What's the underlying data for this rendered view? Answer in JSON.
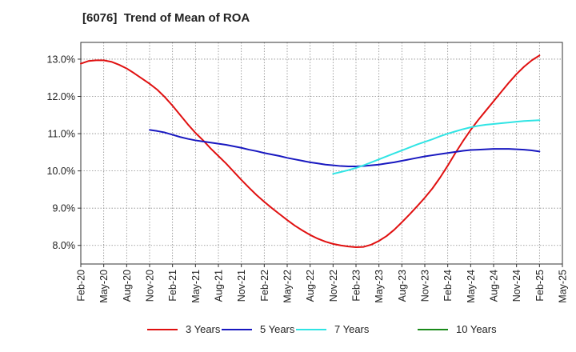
{
  "chart_data": {
    "type": "line",
    "title": "[6076]  Trend of Mean of ROA",
    "xlabel": "",
    "ylabel": "",
    "x_ticks": [
      "Feb-20",
      "May-20",
      "Aug-20",
      "Nov-20",
      "Feb-21",
      "May-21",
      "Aug-21",
      "Nov-21",
      "Feb-22",
      "May-22",
      "Aug-22",
      "Nov-22",
      "Feb-23",
      "May-23",
      "Aug-23",
      "Nov-23",
      "Feb-24",
      "May-24",
      "Aug-24",
      "Nov-24",
      "Feb-25",
      "May-25"
    ],
    "y_ticks": [
      "8.0%",
      "9.0%",
      "10.0%",
      "11.0%",
      "12.0%",
      "13.0%"
    ],
    "y_tick_values": [
      8,
      9,
      10,
      11,
      12,
      13
    ],
    "ylim": [
      7.5,
      13.45
    ],
    "grid": true,
    "legend_position": "bottom",
    "series": [
      {
        "name": "3 Years",
        "color": "#e01010",
        "x": [
          "Feb-20",
          "Mar-20",
          "Apr-20",
          "May-20",
          "Jun-20",
          "Jul-20",
          "Aug-20",
          "Sep-20",
          "Oct-20",
          "Nov-20",
          "Dec-20",
          "Jan-21",
          "Feb-21",
          "Mar-21",
          "Apr-21",
          "May-21",
          "Jun-21",
          "Jul-21",
          "Aug-21",
          "Sep-21",
          "Oct-21",
          "Nov-21",
          "Dec-21",
          "Jan-22",
          "Feb-22",
          "Mar-22",
          "Apr-22",
          "May-22",
          "Jun-22",
          "Jul-22",
          "Aug-22",
          "Sep-22",
          "Oct-22",
          "Nov-22",
          "Dec-22",
          "Jan-23",
          "Feb-23",
          "Mar-23",
          "Apr-23",
          "May-23",
          "Jun-23",
          "Jul-23",
          "Aug-23",
          "Sep-23",
          "Oct-23",
          "Nov-23",
          "Dec-23",
          "Jan-24",
          "Feb-24",
          "Mar-24",
          "Apr-24",
          "May-24",
          "Jun-24",
          "Jul-24",
          "Aug-24",
          "Sep-24",
          "Oct-24",
          "Nov-24",
          "Dec-24",
          "Jan-25",
          "Feb-25"
        ],
        "values": [
          12.88,
          12.95,
          12.97,
          12.97,
          12.93,
          12.85,
          12.75,
          12.62,
          12.48,
          12.34,
          12.18,
          11.98,
          11.75,
          11.5,
          11.25,
          11.02,
          10.82,
          10.6,
          10.4,
          10.2,
          9.98,
          9.76,
          9.55,
          9.35,
          9.17,
          9.0,
          8.84,
          8.68,
          8.53,
          8.4,
          8.28,
          8.18,
          8.1,
          8.04,
          8.0,
          7.97,
          7.95,
          7.96,
          8.02,
          8.12,
          8.25,
          8.42,
          8.62,
          8.83,
          9.05,
          9.28,
          9.53,
          9.82,
          10.14,
          10.48,
          10.8,
          11.1,
          11.37,
          11.62,
          11.87,
          12.12,
          12.37,
          12.6,
          12.8,
          12.97,
          13.1
        ]
      },
      {
        "name": "5 Years",
        "color": "#1818c0",
        "x": [
          "Nov-20",
          "Dec-20",
          "Jan-21",
          "Feb-21",
          "Mar-21",
          "Apr-21",
          "May-21",
          "Jun-21",
          "Jul-21",
          "Aug-21",
          "Sep-21",
          "Oct-21",
          "Nov-21",
          "Dec-21",
          "Jan-22",
          "Feb-22",
          "Mar-22",
          "Apr-22",
          "May-22",
          "Jun-22",
          "Jul-22",
          "Aug-22",
          "Sep-22",
          "Oct-22",
          "Nov-22",
          "Dec-22",
          "Jan-23",
          "Feb-23",
          "Mar-23",
          "Apr-23",
          "May-23",
          "Jun-23",
          "Jul-23",
          "Aug-23",
          "Sep-23",
          "Oct-23",
          "Nov-23",
          "Dec-23",
          "Jan-24",
          "Feb-24",
          "Mar-24",
          "Apr-24",
          "May-24",
          "Jun-24",
          "Jul-24",
          "Aug-24",
          "Sep-24",
          "Oct-24",
          "Nov-24",
          "Dec-24",
          "Jan-25",
          "Feb-25"
        ],
        "values": [
          11.1,
          11.07,
          11.03,
          10.97,
          10.91,
          10.86,
          10.82,
          10.79,
          10.76,
          10.73,
          10.7,
          10.66,
          10.62,
          10.57,
          10.53,
          10.48,
          10.44,
          10.4,
          10.35,
          10.31,
          10.27,
          10.23,
          10.2,
          10.17,
          10.15,
          10.13,
          10.12,
          10.12,
          10.13,
          10.15,
          10.17,
          10.2,
          10.23,
          10.27,
          10.31,
          10.35,
          10.39,
          10.42,
          10.45,
          10.48,
          10.51,
          10.54,
          10.56,
          10.57,
          10.58,
          10.59,
          10.59,
          10.59,
          10.58,
          10.57,
          10.55,
          10.52
        ]
      },
      {
        "name": "7 Years",
        "color": "#30e4e4",
        "x": [
          "Nov-22",
          "Dec-22",
          "Jan-23",
          "Feb-23",
          "Mar-23",
          "Apr-23",
          "May-23",
          "Jun-23",
          "Jul-23",
          "Aug-23",
          "Sep-23",
          "Oct-23",
          "Nov-23",
          "Dec-23",
          "Jan-24",
          "Feb-24",
          "Mar-24",
          "Apr-24",
          "May-24",
          "Jun-24",
          "Jul-24",
          "Aug-24",
          "Sep-24",
          "Oct-24",
          "Nov-24",
          "Dec-24",
          "Jan-25",
          "Feb-25"
        ],
        "values": [
          9.92,
          9.97,
          10.02,
          10.08,
          10.15,
          10.23,
          10.31,
          10.39,
          10.47,
          10.55,
          10.63,
          10.71,
          10.78,
          10.85,
          10.93,
          11.0,
          11.06,
          11.12,
          11.17,
          11.21,
          11.24,
          11.26,
          11.28,
          11.3,
          11.32,
          11.34,
          11.35,
          11.36
        ]
      },
      {
        "name": "10 Years",
        "color": "#1a8a1a",
        "x": [],
        "values": []
      }
    ]
  }
}
